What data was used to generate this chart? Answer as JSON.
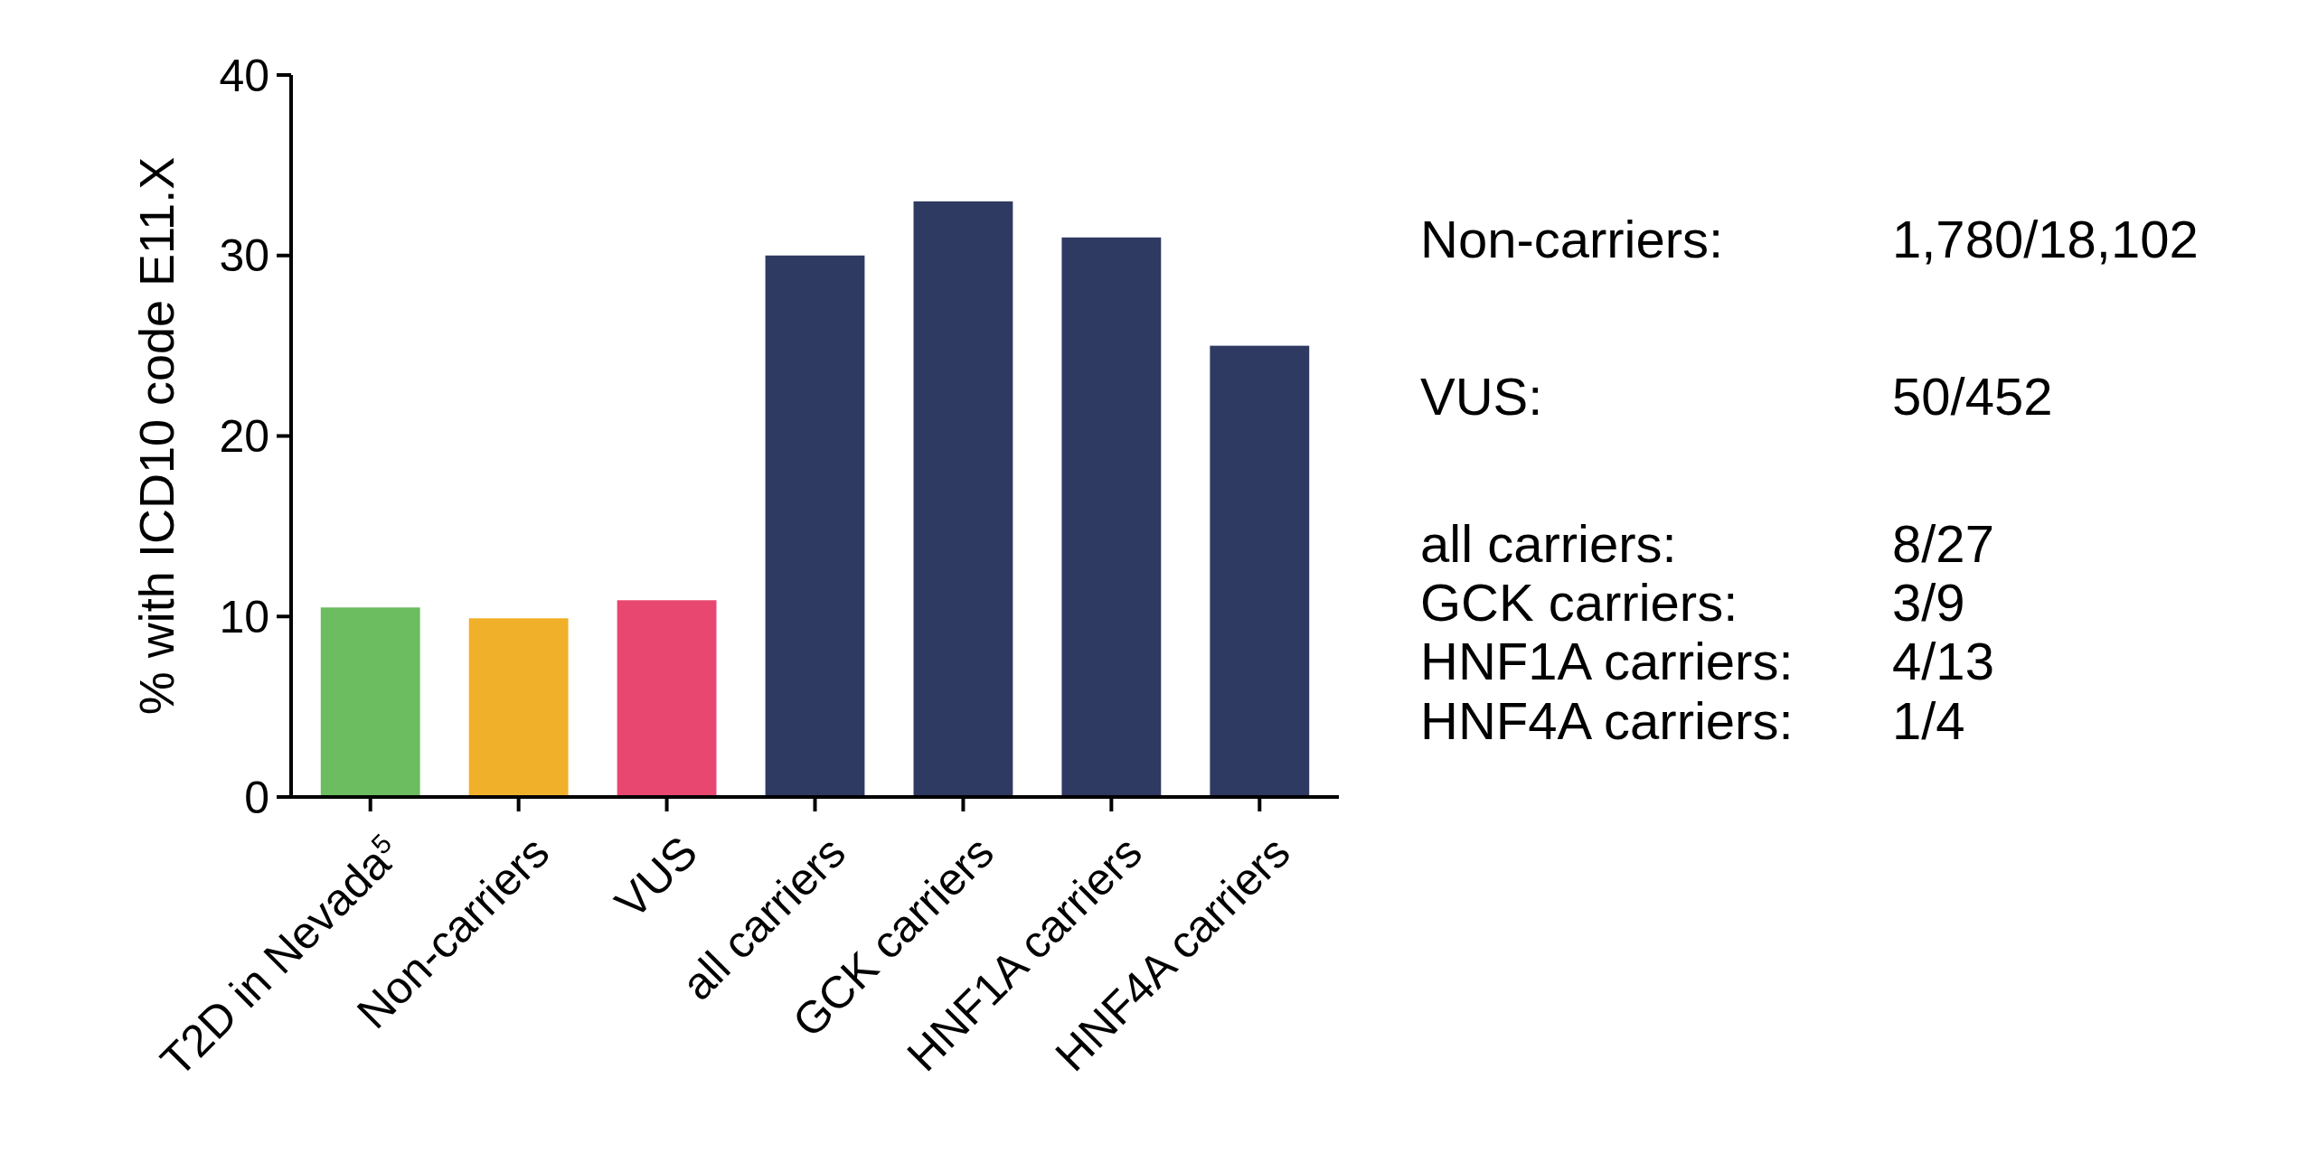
{
  "chart_data": {
    "type": "bar",
    "ylabel": "% with ICD10 code E11.X",
    "categories": [
      "T2D in Nevada$^{5}$",
      "Non-carriers",
      "VUS",
      "all carriers",
      "GCK carriers",
      "HNF1A carriers",
      "HNF4A carriers"
    ],
    "values": [
      10.5,
      9.9,
      10.9,
      30,
      33,
      31,
      25
    ],
    "colors": [
      "#6bbd5f",
      "#f0b02a",
      "#e84770",
      "#2f3a62",
      "#2f3a62",
      "#2f3a62",
      "#2f3a62"
    ],
    "ylim": [
      0,
      40
    ],
    "yticks": [
      0,
      10,
      20,
      30,
      40
    ],
    "grid": false,
    "annotations": [
      "Non-carriers:",
      "1,780/18,102",
      "VUS:",
      "50/452",
      "all carriers:",
      "8/27",
      "GCK carriers:",
      "3/9",
      "HNF1A carriers:",
      "4/13",
      "HNF4A carriers:",
      "1/4"
    ]
  }
}
